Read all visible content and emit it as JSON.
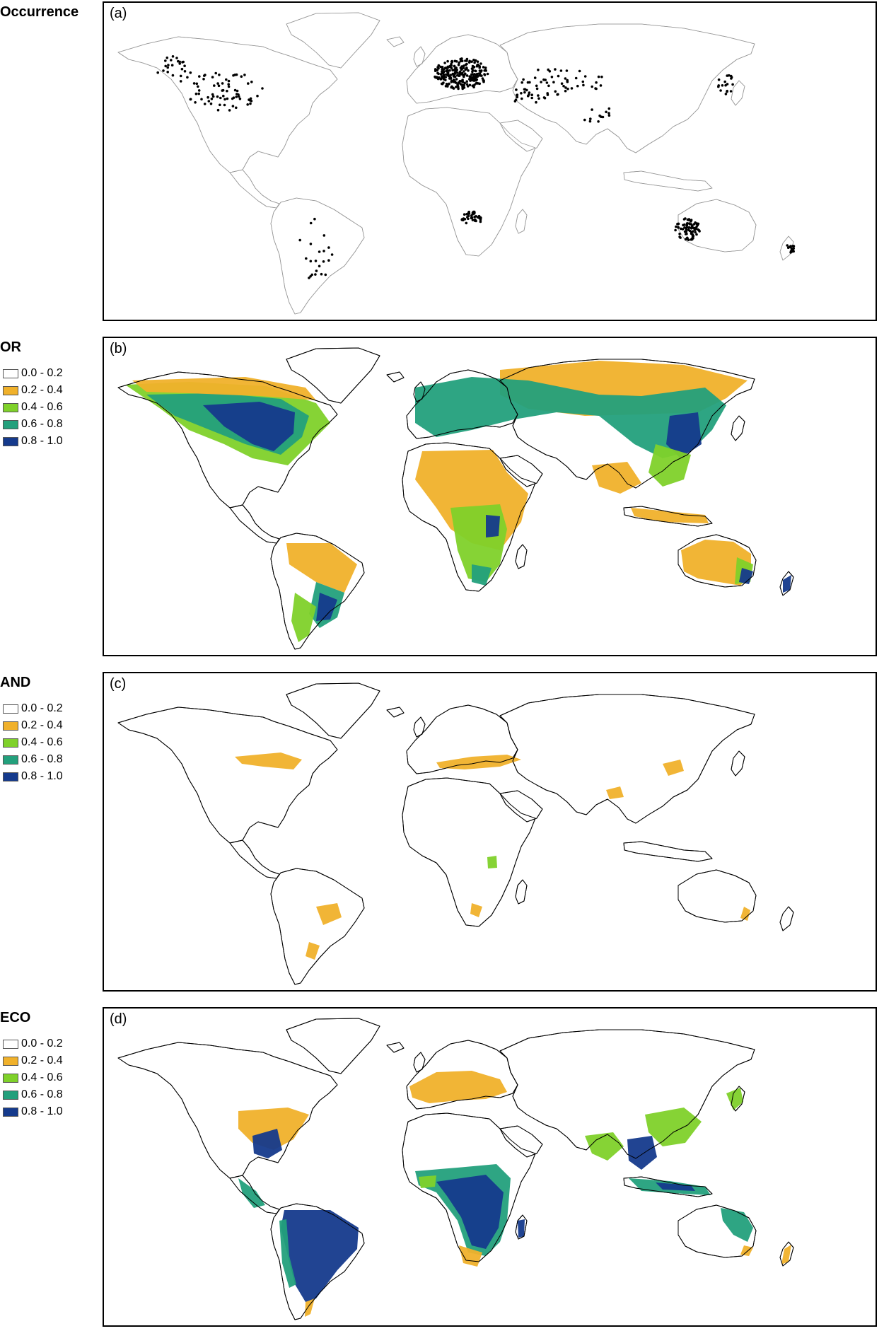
{
  "colors": {
    "class_0": "#ffffff",
    "class_1": "#f0b12b",
    "class_2": "#7fd12a",
    "class_3": "#23a07c",
    "class_4": "#153a8c",
    "occurrence": "#000000",
    "border": "#000000"
  },
  "legend_labels": [
    "0.0 - 0.2",
    "0.2 - 0.4",
    "0.4 - 0.6",
    "0.6 - 0.8",
    "0.8 - 1.0"
  ],
  "panels": [
    {
      "label": "Occurrence",
      "tag": "(a)",
      "has_legend": false
    },
    {
      "label": "OR",
      "tag": "(b)",
      "has_legend": true
    },
    {
      "label": "AND",
      "tag": "(c)",
      "has_legend": true
    },
    {
      "label": "ECO",
      "tag": "(d)",
      "has_legend": true
    }
  ]
}
